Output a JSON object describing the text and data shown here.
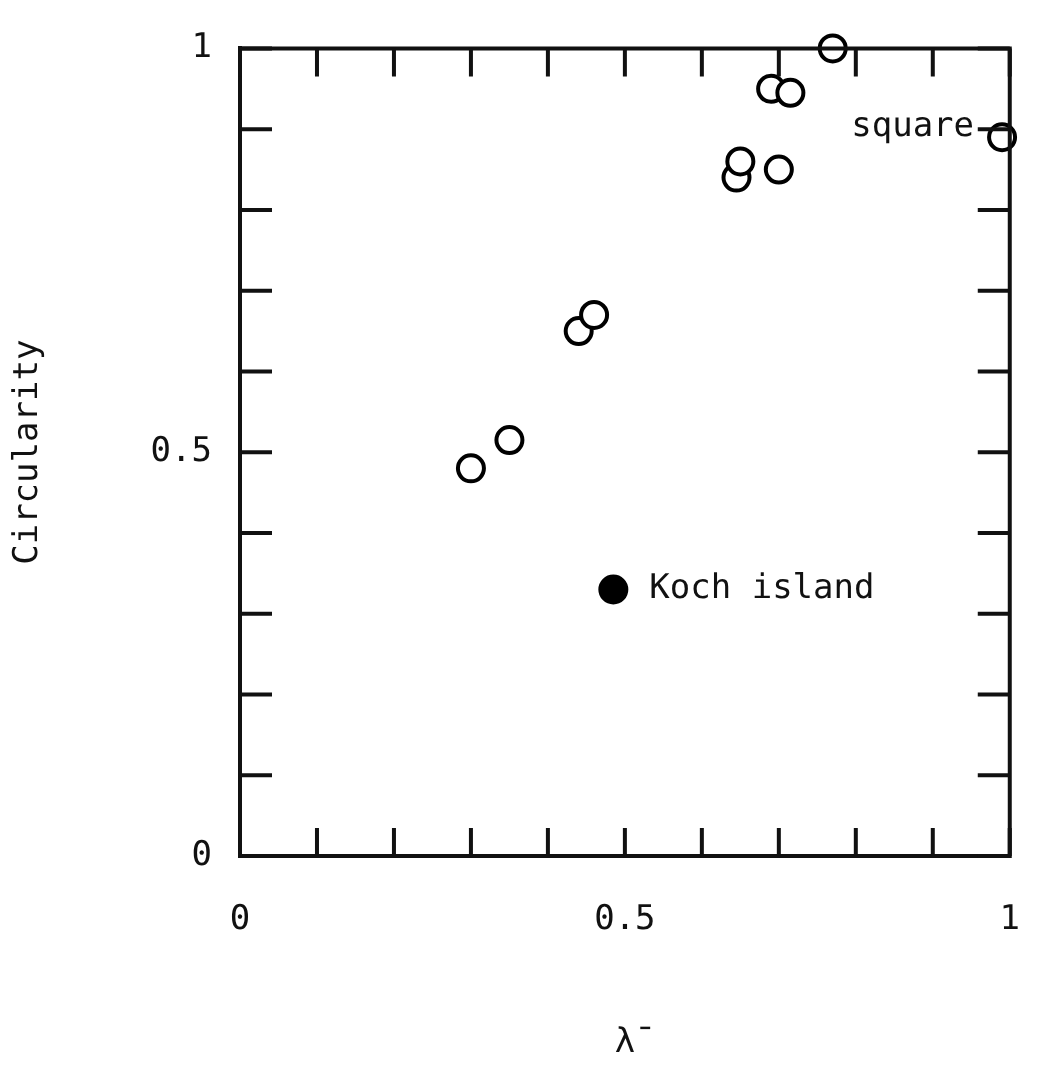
{
  "chart_data": {
    "type": "scatter",
    "xlabel": "λ̄",
    "ylabel": "Circularity",
    "marker": "circle",
    "legend": false,
    "xlim": [
      0,
      1
    ],
    "ylim": [
      0,
      1
    ],
    "xticks": [
      0,
      {
        "value": 0.1,
        "label": null
      },
      {
        "value": 0.2,
        "label": null
      },
      {
        "value": 0.3,
        "label": null
      },
      {
        "value": 0.4,
        "label": null
      },
      0.5,
      {
        "value": 0.6,
        "label": null
      },
      {
        "value": 0.7,
        "label": null
      },
      {
        "value": 0.8,
        "label": null
      },
      {
        "value": 0.9,
        "label": null
      },
      1
    ],
    "yticks": [
      0,
      {
        "value": 0.1,
        "label": null
      },
      {
        "value": 0.2,
        "label": null
      },
      {
        "value": 0.3,
        "label": null
      },
      {
        "value": 0.4,
        "label": null
      },
      0.5,
      {
        "value": 0.6,
        "label": null
      },
      {
        "value": 0.7,
        "label": null
      },
      {
        "value": 0.8,
        "label": null
      },
      {
        "value": 0.9,
        "label": null
      },
      1
    ],
    "series": [
      {
        "color": "#000000",
        "x": [
          0.3,
          0.35,
          0.44,
          0.46,
          0.645,
          0.65,
          0.7,
          0.69,
          0.715,
          0.77,
          0.99
        ],
        "values": [
          0.48,
          0.515,
          0.65,
          0.67,
          0.84,
          0.86,
          0.85,
          0.95,
          0.945,
          1.0,
          0.89
        ]
      },
      {
        "color": "#000000",
        "x": [
          0.485
        ],
        "values": [
          0.33
        ]
      }
    ],
    "annotations": [
      {
        "text": "Koch island",
        "x": 0.485,
        "y": 0.33
      },
      {
        "text": "square",
        "x": 0.99,
        "y": 0.89
      }
    ]
  }
}
